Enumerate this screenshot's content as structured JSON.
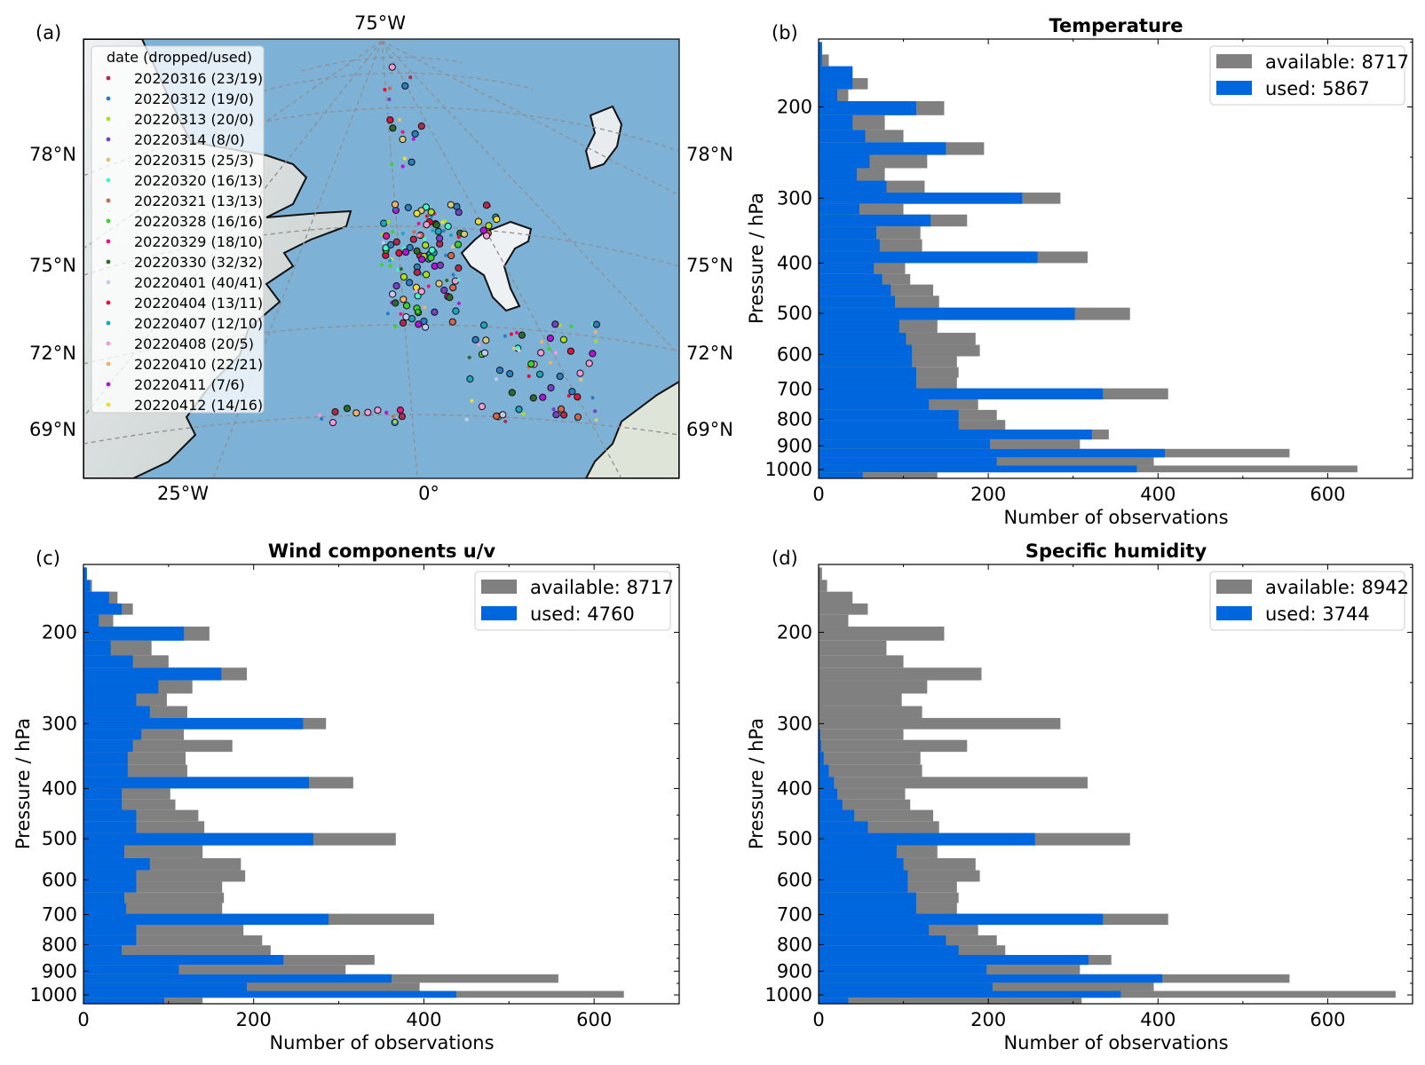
{
  "colors": {
    "available": "#808080",
    "used": "#0066dd",
    "ocean": "#7fb2d8",
    "land": "#d6dcd8",
    "grid": "#8f8f8f"
  },
  "map_panel": {
    "label": "(a)",
    "top_lon_label": "75°W",
    "bottom_lon_labels": [
      "25°W",
      "0°"
    ],
    "lat_labels": [
      "78°N",
      "75°N",
      "72°N",
      "69°N"
    ],
    "legend_title": "date (dropped/used)",
    "legend": [
      {
        "label": "20220316 (23/19)",
        "color": "#b22a4e"
      },
      {
        "label": "20220312 (19/0)",
        "color": "#2b7fc0"
      },
      {
        "label": "20220313 (20/0)",
        "color": "#a8e021"
      },
      {
        "label": "20220314 (8/0)",
        "color": "#7a3fc8"
      },
      {
        "label": "20220315 (25/3)",
        "color": "#d8c87a"
      },
      {
        "label": "20220320 (16/13)",
        "color": "#45f5c5"
      },
      {
        "label": "20220321 (13/13)",
        "color": "#d0664a"
      },
      {
        "label": "20220328 (16/16)",
        "color": "#3cd22a"
      },
      {
        "label": "20220329 (18/10)",
        "color": "#e6158b"
      },
      {
        "label": "20220330 (32/32)",
        "color": "#2f6a2b"
      },
      {
        "label": "20220401 (40/41)",
        "color": "#c8c8ee"
      },
      {
        "label": "20220404 (13/11)",
        "color": "#e0123e"
      },
      {
        "label": "20220407 (12/10)",
        "color": "#1aa6c0"
      },
      {
        "label": "20220408 (20/5)",
        "color": "#f29ad6"
      },
      {
        "label": "20220410 (22/21)",
        "color": "#f2b068"
      },
      {
        "label": "20220411 (7/6)",
        "color": "#b515d8"
      },
      {
        "label": "20220412 (14/16)",
        "color": "#e8de3a"
      }
    ]
  },
  "chart_data": [
    {
      "type": "bar",
      "orientation": "horizontal",
      "panel_label": "(b)",
      "title": "Temperature",
      "xlabel": "Number of observations",
      "ylabel": "Pressure / hPa",
      "xlim": [
        0,
        700
      ],
      "xticks": [
        "0",
        "200",
        "400",
        "600"
      ],
      "yticks": [
        "200",
        "300",
        "400",
        "500",
        "600",
        "700",
        "800",
        "900",
        "1000"
      ],
      "legend": [
        "available: 8717",
        "used: 5867"
      ],
      "bins": [
        {
          "p": 1025,
          "available": 140,
          "used": 52
        },
        {
          "p": 1000,
          "available": 635,
          "used": 375
        },
        {
          "p": 965,
          "available": 395,
          "used": 210
        },
        {
          "p": 930,
          "available": 555,
          "used": 408
        },
        {
          "p": 895,
          "available": 308,
          "used": 202
        },
        {
          "p": 855,
          "available": 342,
          "used": 322
        },
        {
          "p": 820,
          "available": 220,
          "used": 165
        },
        {
          "p": 785,
          "available": 210,
          "used": 165
        },
        {
          "p": 750,
          "available": 188,
          "used": 130
        },
        {
          "p": 715,
          "available": 412,
          "used": 335
        },
        {
          "p": 680,
          "available": 163,
          "used": 115
        },
        {
          "p": 650,
          "available": 165,
          "used": 115
        },
        {
          "p": 620,
          "available": 163,
          "used": 110
        },
        {
          "p": 590,
          "available": 190,
          "used": 110
        },
        {
          "p": 560,
          "available": 185,
          "used": 103
        },
        {
          "p": 530,
          "available": 140,
          "used": 95
        },
        {
          "p": 500,
          "available": 367,
          "used": 302
        },
        {
          "p": 475,
          "available": 142,
          "used": 90
        },
        {
          "p": 450,
          "available": 135,
          "used": 85
        },
        {
          "p": 430,
          "available": 108,
          "used": 75
        },
        {
          "p": 410,
          "available": 102,
          "used": 65
        },
        {
          "p": 390,
          "available": 317,
          "used": 258
        },
        {
          "p": 370,
          "available": 122,
          "used": 72
        },
        {
          "p": 350,
          "available": 120,
          "used": 68
        },
        {
          "p": 330,
          "available": 175,
          "used": 132
        },
        {
          "p": 315,
          "available": 100,
          "used": 48
        },
        {
          "p": 300,
          "available": 285,
          "used": 240
        },
        {
          "p": 285,
          "available": 125,
          "used": 80
        },
        {
          "p": 270,
          "available": 78,
          "used": 45
        },
        {
          "p": 255,
          "available": 128,
          "used": 60
        },
        {
          "p": 240,
          "available": 195,
          "used": 150
        },
        {
          "p": 228,
          "available": 100,
          "used": 55
        },
        {
          "p": 215,
          "available": 78,
          "used": 40
        },
        {
          "p": 200,
          "available": 148,
          "used": 115
        },
        {
          "p": 190,
          "available": 35,
          "used": 22
        },
        {
          "p": 180,
          "available": 58,
          "used": 40
        },
        {
          "p": 172,
          "available": 40,
          "used": 40
        },
        {
          "p": 162,
          "available": 12,
          "used": 4
        },
        {
          "p": 155,
          "available": 4,
          "used": 4
        }
      ]
    },
    {
      "type": "bar",
      "orientation": "horizontal",
      "panel_label": "(c)",
      "title": "Wind components u/v",
      "xlabel": "Number of observations",
      "ylabel": "Pressure / hPa",
      "xlim": [
        0,
        700
      ],
      "xticks": [
        "0",
        "200",
        "400",
        "600"
      ],
      "yticks": [
        "200",
        "300",
        "400",
        "500",
        "600",
        "700",
        "800",
        "900",
        "1000"
      ],
      "legend": [
        "available: 8717",
        "used: 4760"
      ],
      "bins": [
        {
          "p": 1025,
          "available": 140,
          "used": 95
        },
        {
          "p": 1000,
          "available": 635,
          "used": 438
        },
        {
          "p": 965,
          "available": 395,
          "used": 192
        },
        {
          "p": 930,
          "available": 558,
          "used": 362
        },
        {
          "p": 895,
          "available": 308,
          "used": 112
        },
        {
          "p": 855,
          "available": 342,
          "used": 235
        },
        {
          "p": 820,
          "available": 220,
          "used": 45
        },
        {
          "p": 785,
          "available": 210,
          "used": 62
        },
        {
          "p": 750,
          "available": 188,
          "used": 62
        },
        {
          "p": 715,
          "available": 412,
          "used": 288
        },
        {
          "p": 680,
          "available": 163,
          "used": 50
        },
        {
          "p": 650,
          "available": 165,
          "used": 48
        },
        {
          "p": 620,
          "available": 163,
          "used": 62
        },
        {
          "p": 590,
          "available": 190,
          "used": 62
        },
        {
          "p": 560,
          "available": 185,
          "used": 78
        },
        {
          "p": 530,
          "available": 140,
          "used": 48
        },
        {
          "p": 500,
          "available": 367,
          "used": 270
        },
        {
          "p": 475,
          "available": 142,
          "used": 62
        },
        {
          "p": 450,
          "available": 135,
          "used": 62
        },
        {
          "p": 430,
          "available": 108,
          "used": 45
        },
        {
          "p": 410,
          "available": 102,
          "used": 45
        },
        {
          "p": 390,
          "available": 317,
          "used": 265
        },
        {
          "p": 370,
          "available": 122,
          "used": 52
        },
        {
          "p": 350,
          "available": 120,
          "used": 52
        },
        {
          "p": 330,
          "available": 175,
          "used": 58
        },
        {
          "p": 315,
          "available": 118,
          "used": 68
        },
        {
          "p": 300,
          "available": 285,
          "used": 258
        },
        {
          "p": 285,
          "available": 122,
          "used": 78
        },
        {
          "p": 270,
          "available": 98,
          "used": 62
        },
        {
          "p": 255,
          "available": 128,
          "used": 88
        },
        {
          "p": 240,
          "available": 192,
          "used": 162
        },
        {
          "p": 228,
          "available": 100,
          "used": 58
        },
        {
          "p": 215,
          "available": 80,
          "used": 32
        },
        {
          "p": 200,
          "available": 148,
          "used": 118
        },
        {
          "p": 190,
          "available": 35,
          "used": 18
        },
        {
          "p": 180,
          "available": 58,
          "used": 45
        },
        {
          "p": 172,
          "available": 40,
          "used": 30
        },
        {
          "p": 162,
          "available": 10,
          "used": 8
        },
        {
          "p": 155,
          "available": 4,
          "used": 4
        }
      ]
    },
    {
      "type": "bar",
      "orientation": "horizontal",
      "panel_label": "(d)",
      "title": "Specific humidity",
      "xlabel": "Number of observations",
      "ylabel": "Pressure / hPa",
      "xlim": [
        0,
        700
      ],
      "xticks": [
        "0",
        "200",
        "400",
        "600"
      ],
      "yticks": [
        "200",
        "300",
        "400",
        "500",
        "600",
        "700",
        "800",
        "900",
        "1000"
      ],
      "legend": [
        "available: 8942",
        "used: 3744"
      ],
      "bins": [
        {
          "p": 1025,
          "available": 310,
          "used": 35
        },
        {
          "p": 1000,
          "available": 680,
          "used": 356
        },
        {
          "p": 965,
          "available": 395,
          "used": 205
        },
        {
          "p": 930,
          "available": 555,
          "used": 405
        },
        {
          "p": 895,
          "available": 308,
          "used": 198
        },
        {
          "p": 855,
          "available": 345,
          "used": 318
        },
        {
          "p": 820,
          "available": 220,
          "used": 165
        },
        {
          "p": 785,
          "available": 210,
          "used": 150
        },
        {
          "p": 750,
          "available": 188,
          "used": 130
        },
        {
          "p": 715,
          "available": 412,
          "used": 335
        },
        {
          "p": 680,
          "available": 163,
          "used": 115
        },
        {
          "p": 650,
          "available": 165,
          "used": 115
        },
        {
          "p": 620,
          "available": 163,
          "used": 105
        },
        {
          "p": 590,
          "available": 190,
          "used": 105
        },
        {
          "p": 560,
          "available": 185,
          "used": 100
        },
        {
          "p": 530,
          "available": 140,
          "used": 92
        },
        {
          "p": 500,
          "available": 367,
          "used": 255
        },
        {
          "p": 475,
          "available": 142,
          "used": 58
        },
        {
          "p": 450,
          "available": 135,
          "used": 42
        },
        {
          "p": 430,
          "available": 108,
          "used": 28
        },
        {
          "p": 410,
          "available": 102,
          "used": 22
        },
        {
          "p": 390,
          "available": 317,
          "used": 18
        },
        {
          "p": 370,
          "available": 122,
          "used": 12
        },
        {
          "p": 350,
          "available": 120,
          "used": 6
        },
        {
          "p": 330,
          "available": 175,
          "used": 3
        },
        {
          "p": 315,
          "available": 100,
          "used": 2
        },
        {
          "p": 300,
          "available": 285,
          "used": 0
        },
        {
          "p": 285,
          "available": 122,
          "used": 0
        },
        {
          "p": 270,
          "available": 98,
          "used": 0
        },
        {
          "p": 255,
          "available": 128,
          "used": 0
        },
        {
          "p": 240,
          "available": 192,
          "used": 0
        },
        {
          "p": 228,
          "available": 100,
          "used": 0
        },
        {
          "p": 215,
          "available": 80,
          "used": 0
        },
        {
          "p": 200,
          "available": 148,
          "used": 0
        },
        {
          "p": 190,
          "available": 35,
          "used": 0
        },
        {
          "p": 180,
          "available": 58,
          "used": 0
        },
        {
          "p": 172,
          "available": 40,
          "used": 0
        },
        {
          "p": 162,
          "available": 10,
          "used": 0
        },
        {
          "p": 155,
          "available": 4,
          "used": 0
        }
      ]
    }
  ]
}
